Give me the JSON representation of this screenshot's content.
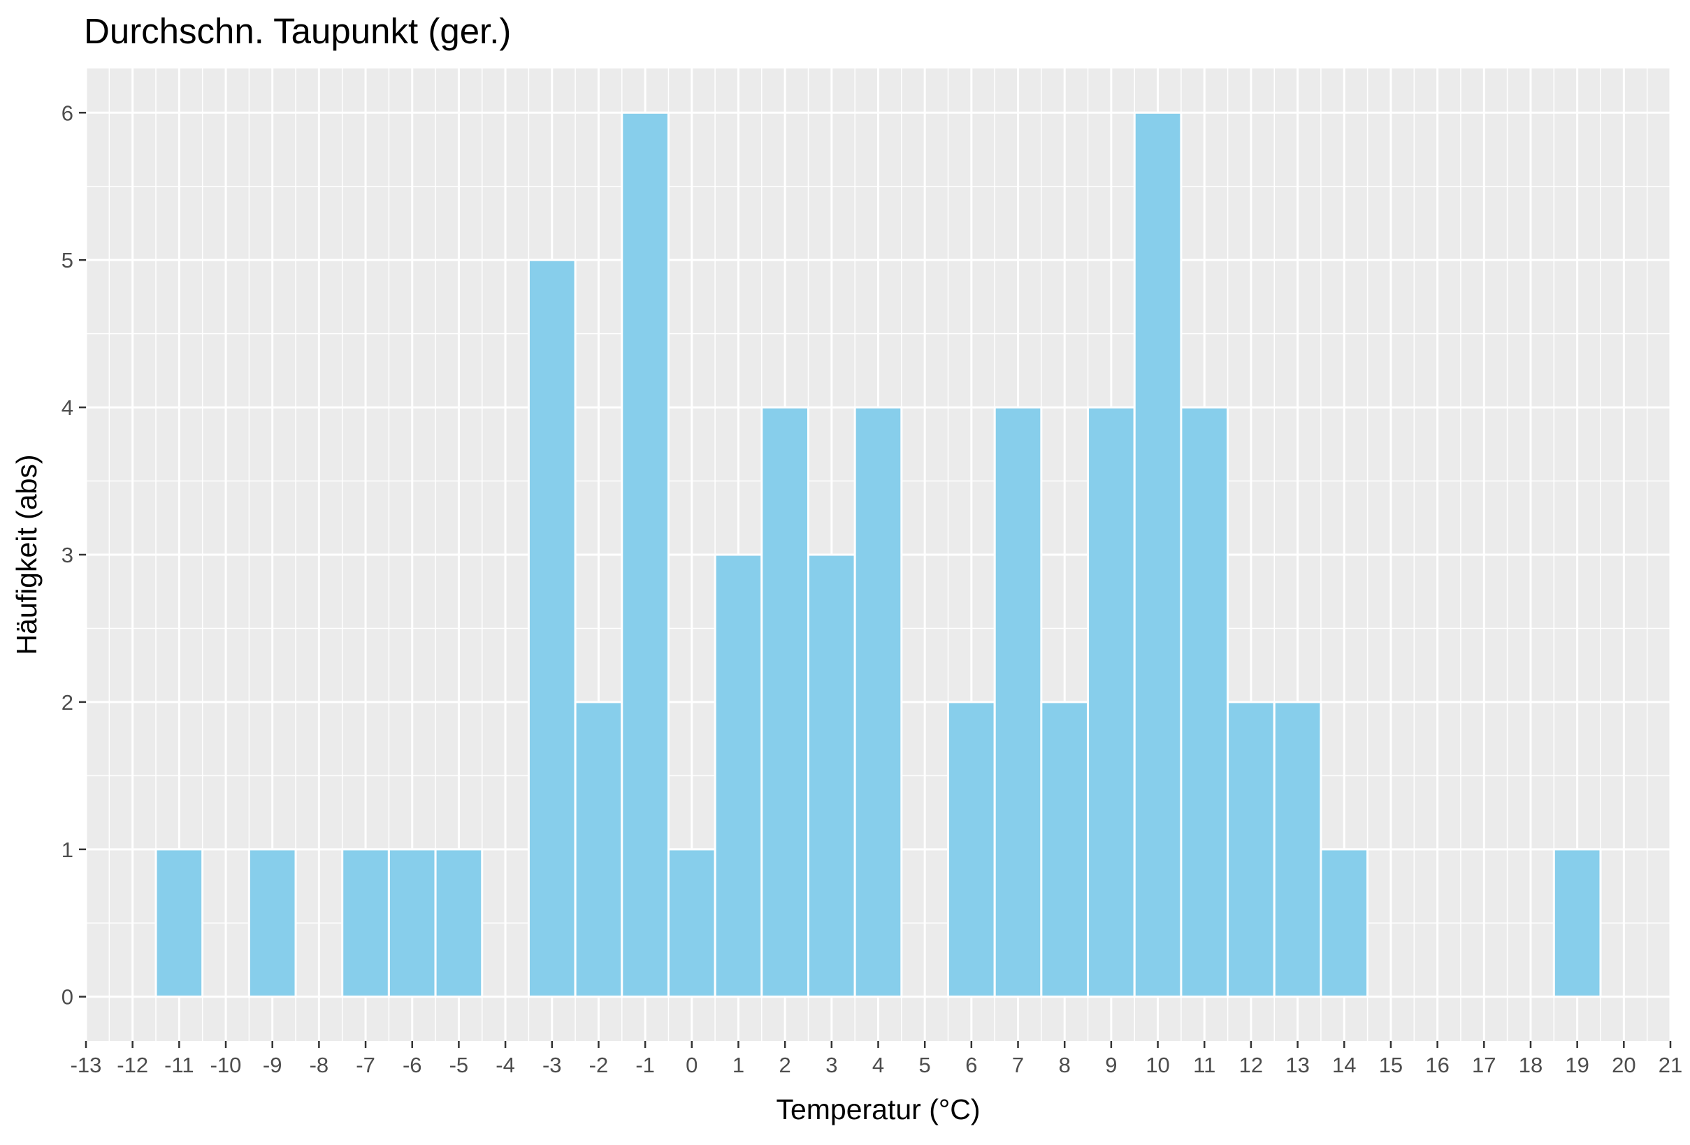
{
  "chart_data": {
    "type": "bar",
    "title": "Durchschn. Taupunkt (ger.)",
    "xlabel": "Temperatur (°C)",
    "ylabel": "Häufigkeit (abs)",
    "xlim": [
      -13,
      21
    ],
    "ylim": [
      0,
      6
    ],
    "x_ticks": [
      -13,
      -12,
      -11,
      -10,
      -9,
      -8,
      -7,
      -6,
      -5,
      -4,
      -3,
      -2,
      -1,
      0,
      1,
      2,
      3,
      4,
      5,
      6,
      7,
      8,
      9,
      10,
      11,
      12,
      13,
      14,
      15,
      16,
      17,
      18,
      19,
      20,
      21
    ],
    "x_tick_labels": [
      "-13",
      "-12",
      "-11",
      "-10",
      "-9",
      "-8",
      "-7",
      "-6",
      "-5",
      "-4",
      "-3",
      "-2",
      "-1",
      "0",
      "1",
      "2",
      "3",
      "4",
      "5",
      "6",
      "7",
      "8",
      "9",
      "10",
      "11",
      "12",
      "13",
      "14",
      "15",
      "16",
      "17",
      "18",
      "19",
      "20",
      "21"
    ],
    "y_ticks": [
      0,
      1,
      2,
      3,
      4,
      5,
      6
    ],
    "y_tick_labels": [
      "0",
      "1",
      "2",
      "3",
      "4",
      "5",
      "6"
    ],
    "grid": true,
    "colors": {
      "bar_fill": "#87CEEB",
      "bar_stroke": "#FFFFFF",
      "panel_background": "#EBEBEB",
      "grid": "#FFFFFF",
      "tick_text": "#4D4D4D",
      "tick_mark": "#333333"
    },
    "x": [
      -11,
      -9,
      -7,
      -6,
      -5,
      -3,
      -2,
      -1,
      0,
      1,
      2,
      3,
      4,
      6,
      7,
      8,
      9,
      10,
      11,
      12,
      13,
      14,
      19
    ],
    "values": [
      1,
      1,
      1,
      1,
      1,
      5,
      2,
      6,
      1,
      3,
      4,
      3,
      4,
      2,
      4,
      2,
      4,
      6,
      4,
      2,
      2,
      1,
      1
    ]
  }
}
